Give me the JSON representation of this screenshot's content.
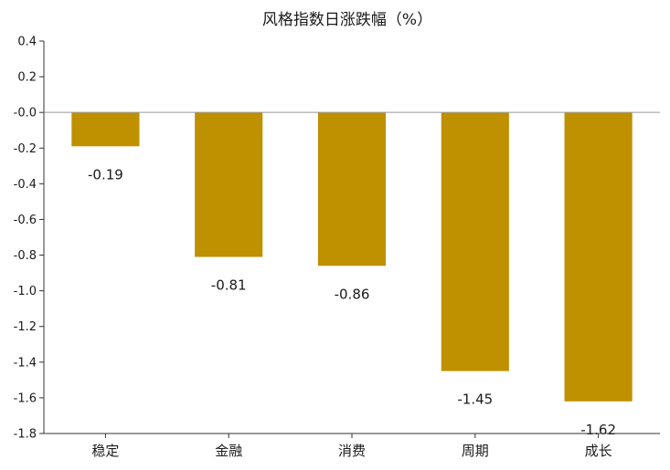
{
  "chart_data": {
    "type": "bar",
    "title": "风格指数日涨跌幅（%）",
    "categories": [
      "稳定",
      "金融",
      "消费",
      "周期",
      "成长"
    ],
    "values": [
      -0.19,
      -0.81,
      -0.86,
      -1.45,
      -1.62
    ],
    "data_labels": [
      "-0.19",
      "-0.81",
      "-0.86",
      "-1.45",
      "-1.62"
    ],
    "ylim": [
      -1.8,
      0.4
    ],
    "yticks": [
      0.4,
      0.2,
      0.0,
      -0.2,
      -0.4,
      -0.6,
      -0.8,
      -1.0,
      -1.2,
      -1.4,
      -1.6,
      -1.8
    ],
    "ytick_labels": [
      "0.4",
      "0.2",
      "-0.0",
      "-0.2",
      "-0.4",
      "-0.6",
      "-0.8",
      "-1.0",
      "-1.2",
      "-1.4",
      "-1.6",
      "-1.8"
    ],
    "bar_color": "#BF9000",
    "grid": false,
    "legend": "none"
  }
}
